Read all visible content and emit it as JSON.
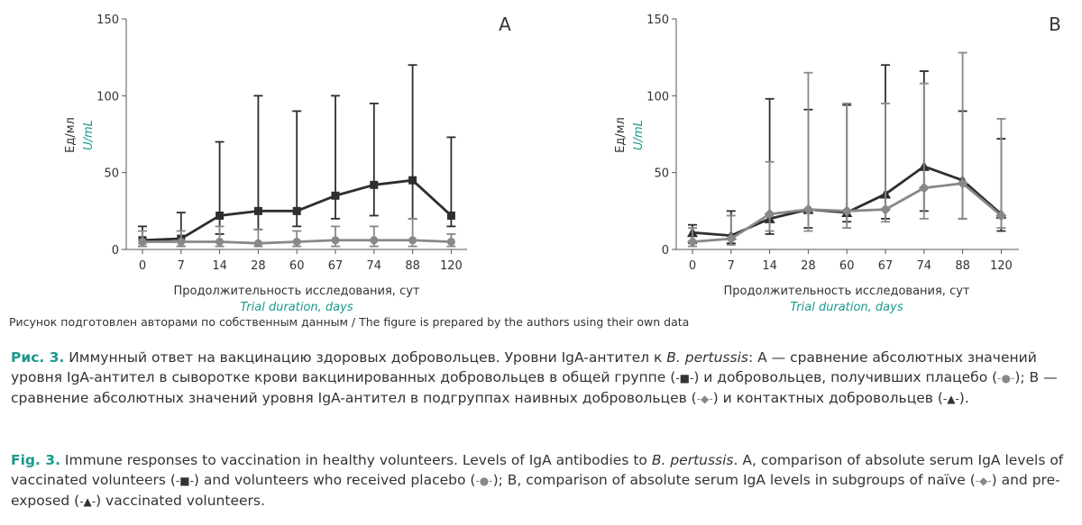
{
  "chart_data": [
    {
      "type": "line",
      "panel_label": "A",
      "title": "",
      "xlabel": "Продолжительность исследования, сут",
      "xlabel_en": "Trial duration, days",
      "ylabel": "Ед/мл",
      "ylabel_en": "U/mL",
      "categories": [
        "0",
        "7",
        "14",
        "28",
        "60",
        "67",
        "74",
        "88",
        "120"
      ],
      "ylim": [
        0,
        150
      ],
      "yticks": [
        "0",
        "50",
        "100",
        "150"
      ],
      "grid": false,
      "legend": "none",
      "series": [
        {
          "marker": "square",
          "color": "#2e2e2e",
          "values": [
            6,
            7,
            22,
            25,
            25,
            35,
            42,
            45,
            22
          ],
          "err_low": [
            2,
            2,
            10,
            13,
            15,
            20,
            22,
            20,
            15
          ],
          "err_high": [
            15,
            24,
            70,
            100,
            90,
            100,
            95,
            120,
            73
          ]
        },
        {
          "marker": "circle",
          "color": "#888888",
          "values": [
            5,
            5,
            5,
            4,
            5,
            6,
            6,
            6,
            5
          ],
          "err_low": [
            2,
            2,
            2,
            2,
            2,
            2,
            2,
            2,
            2
          ],
          "err_high": [
            12,
            12,
            15,
            13,
            12,
            15,
            15,
            20,
            10
          ]
        }
      ]
    },
    {
      "type": "line",
      "panel_label": "B",
      "title": "",
      "xlabel": "Продолжительность исследования, сут",
      "xlabel_en": "Trial duration, days",
      "ylabel": "Ед/мл",
      "ylabel_en": "U/mL",
      "categories": [
        "0",
        "7",
        "14",
        "28",
        "60",
        "67",
        "74",
        "88",
        "120"
      ],
      "ylim": [
        0,
        150
      ],
      "yticks": [
        "0",
        "50",
        "100",
        "150"
      ],
      "grid": false,
      "legend": "none",
      "series": [
        {
          "marker": "triangle",
          "color": "#2e2e2e",
          "values": [
            11,
            9,
            20,
            26,
            24,
            36,
            54,
            45,
            23
          ],
          "err_low": [
            4,
            4,
            10,
            14,
            18,
            20,
            25,
            20,
            12
          ],
          "err_high": [
            16,
            25,
            98,
            91,
            94,
            120,
            116,
            90,
            72
          ]
        },
        {
          "marker": "diamond",
          "color": "#888888",
          "values": [
            5,
            7,
            23,
            26,
            25,
            26,
            40,
            43,
            22
          ],
          "err_low": [
            2,
            3,
            12,
            12,
            14,
            18,
            20,
            20,
            14
          ],
          "err_high": [
            14,
            22,
            57,
            115,
            95,
            95,
            108,
            128,
            85
          ]
        }
      ]
    }
  ],
  "source_note": "Рисунок подготовлен авторами по собственным данным / The figure is prepared by the authors using their own data",
  "caption_ru": {
    "lead": "Рис. 3.",
    "part1": " Иммунный ответ на вакцинацию здоровых добровольцев. Уровни IgA-антител к ",
    "species": "B. pertussis",
    "part2": ": А — сравнение абсолютных значений уровня IgA-антител в сыворотке крови вакцинированных добровольцев в общей группе (",
    "sym1": "-■-",
    "part3": ") и добровольцев, получивших плацебо (",
    "sym2": "-●-",
    "part4": "); В — сравнение абсолютных значений уровня IgA-антител в подгруппах наивных добровольцев (",
    "sym3": "-◆-",
    "part5": ") и контактных добровольцев (",
    "sym4": "-▲-",
    "part6": ")."
  },
  "caption_en": {
    "lead": "Fig. 3.",
    "part1": " Immune responses to vaccination in healthy volunteers. Levels of IgA antibodies to ",
    "species": "B. pertussis",
    "part2": ". A, comparison of absolute serum IgA levels of vaccinated volunteers (",
    "sym1": "-■-",
    "part3": ") and volunteers who received placebo (",
    "sym2": "-●-",
    "part4": "); B, comparison of absolute serum IgA levels in subgroups of naïve (",
    "sym3": "-◆-",
    "part5": ") and pre-exposed (",
    "sym4": "-▲-",
    "part6": ") vaccinated volunteers."
  }
}
